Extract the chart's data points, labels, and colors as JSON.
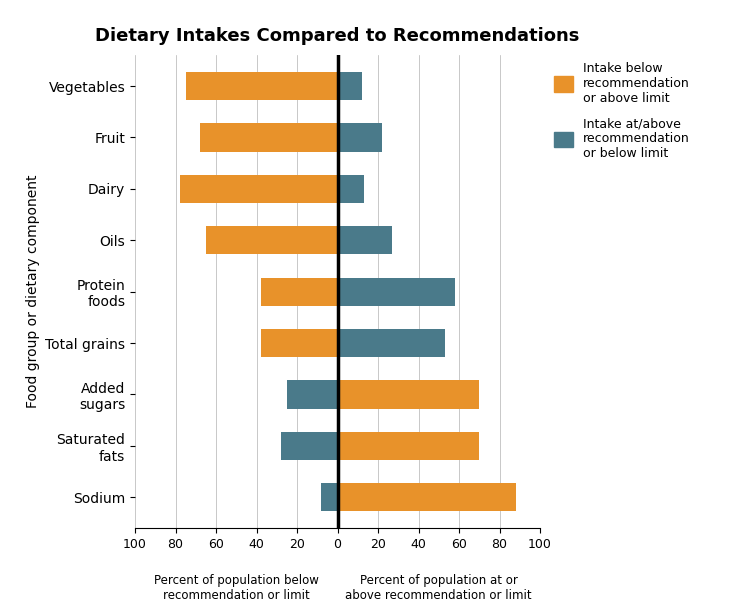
{
  "title": "Dietary Intakes Compared to Recommendations",
  "categories": [
    "Vegetables",
    "Fruit",
    "Dairy",
    "Oils",
    "Protein\nfoods",
    "Total grains",
    "Added\nsugars",
    "Saturated\nfats",
    "Sodium"
  ],
  "orange_bars": [
    -75,
    -68,
    -78,
    -65,
    -38,
    -38,
    70,
    70,
    88
  ],
  "teal_bars": [
    12,
    22,
    13,
    27,
    58,
    53,
    -25,
    -28,
    -8
  ],
  "orange_color": "#E8922A",
  "teal_color": "#4A7A8A",
  "xlabel_left": "Percent of population below\nrecommendation or limit",
  "xlabel_right": "Percent of population at or\nabove recommendation or limit",
  "ylabel": "Food group or dietary component",
  "legend_orange": "Intake below\nrecommendation\nor above limit",
  "legend_teal": "Intake at/above\nrecommendation\nor below limit",
  "bar_height": 0.55
}
